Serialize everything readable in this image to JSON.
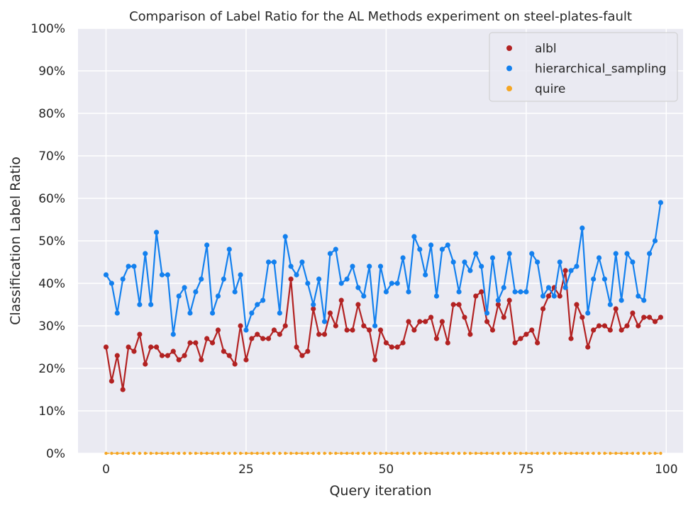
{
  "chart_data": {
    "type": "line",
    "title": "Comparison of Label Ratio for the AL Methods experiment on steel-plates-fault",
    "xlabel": "Query iteration",
    "ylabel": "Classification Label Ratio",
    "xlim": [
      -5,
      103
    ],
    "ylim": [
      0,
      100
    ],
    "xticks": [
      0,
      25,
      50,
      75,
      100
    ],
    "yticks": [
      0,
      10,
      20,
      30,
      40,
      50,
      60,
      70,
      80,
      90,
      100
    ],
    "ytick_suffix": "%",
    "grid": true,
    "background": "#eaeaf2",
    "legend_position": "top-right",
    "series": [
      {
        "name": "albl",
        "color": "#b22222",
        "values": [
          25,
          17,
          23,
          15,
          25,
          24,
          28,
          21,
          25,
          25,
          23,
          23,
          24,
          22,
          23,
          26,
          26,
          22,
          27,
          26,
          29,
          24,
          23,
          21,
          30,
          22,
          27,
          28,
          27,
          27,
          29,
          28,
          30,
          41,
          25,
          23,
          24,
          34,
          28,
          28,
          33,
          30,
          36,
          29,
          29,
          35,
          30,
          29,
          22,
          29,
          26,
          25,
          25,
          26,
          31,
          29,
          31,
          31,
          32,
          27,
          31,
          26,
          35,
          35,
          32,
          28,
          37,
          38,
          31,
          29,
          35,
          32,
          36,
          26,
          27,
          28,
          29,
          26,
          34,
          37,
          39,
          37,
          43,
          27,
          35,
          32,
          25,
          29,
          30,
          30,
          29,
          34,
          29,
          30,
          33,
          30,
          32,
          32,
          31,
          32
        ]
      },
      {
        "name": "hierarchical_sampling",
        "color": "#1380ee",
        "values": [
          42,
          40,
          33,
          41,
          44,
          44,
          35,
          47,
          35,
          52,
          42,
          42,
          28,
          37,
          39,
          33,
          38,
          41,
          49,
          33,
          37,
          41,
          48,
          38,
          42,
          29,
          33,
          35,
          36,
          45,
          45,
          33,
          51,
          44,
          42,
          45,
          40,
          35,
          41,
          31,
          47,
          48,
          40,
          41,
          44,
          39,
          37,
          44,
          30,
          44,
          38,
          40,
          40,
          46,
          38,
          51,
          48,
          42,
          49,
          37,
          48,
          49,
          45,
          38,
          45,
          43,
          47,
          44,
          33,
          46,
          36,
          39,
          47,
          38,
          38,
          38,
          47,
          45,
          37,
          39,
          37,
          45,
          39,
          43,
          44,
          53,
          33,
          41,
          46,
          41,
          35,
          47,
          36,
          47,
          45,
          37,
          36,
          47,
          50,
          59
        ]
      },
      {
        "name": "quire",
        "color": "#f5a623",
        "values": [
          0,
          0,
          0,
          0,
          0,
          0,
          0,
          0,
          0,
          0,
          0,
          0,
          0,
          0,
          0,
          0,
          0,
          0,
          0,
          0,
          0,
          0,
          0,
          0,
          0,
          0,
          0,
          0,
          0,
          0,
          0,
          0,
          0,
          0,
          0,
          0,
          0,
          0,
          0,
          0,
          0,
          0,
          0,
          0,
          0,
          0,
          0,
          0,
          0,
          0,
          0,
          0,
          0,
          0,
          0,
          0,
          0,
          0,
          0,
          0,
          0,
          0,
          0,
          0,
          0,
          0,
          0,
          0,
          0,
          0,
          0,
          0,
          0,
          0,
          0,
          0,
          0,
          0,
          0,
          0,
          0,
          0,
          0,
          0,
          0,
          0,
          0,
          0,
          0,
          0,
          0,
          0,
          0,
          0,
          0,
          0,
          0,
          0,
          0,
          0
        ]
      }
    ]
  }
}
